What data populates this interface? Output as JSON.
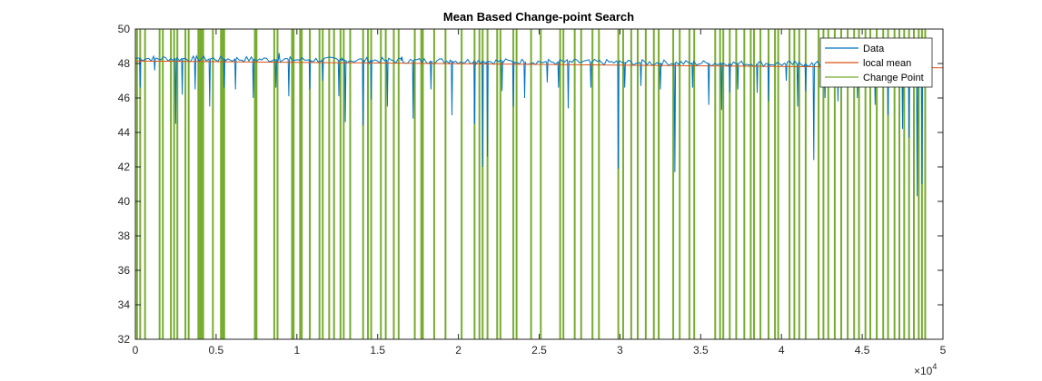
{
  "chart_data": {
    "type": "line",
    "title": "Mean Based Change-point Search",
    "xlabel": "",
    "ylabel": "",
    "xlim": [
      0,
      50000
    ],
    "ylim": [
      32,
      50
    ],
    "x_ticks": [
      0,
      5000,
      10000,
      15000,
      20000,
      25000,
      30000,
      35000,
      40000,
      45000,
      50000
    ],
    "x_tick_labels": [
      "0",
      "0.5",
      "1",
      "1.5",
      "2",
      "2.5",
      "3",
      "3.5",
      "4",
      "4.5",
      "5"
    ],
    "x_exponent_base": "×10",
    "x_exponent_power": "4",
    "y_ticks": [
      32,
      34,
      36,
      38,
      40,
      42,
      44,
      46,
      48,
      50
    ],
    "y_tick_labels": [
      "32",
      "34",
      "36",
      "38",
      "40",
      "42",
      "44",
      "46",
      "48",
      "50"
    ],
    "grid": false,
    "legend_position": "top-right",
    "series": [
      {
        "name": "Data",
        "color": "#0072BD",
        "baseline_start": 48.3,
        "baseline_end": 47.9,
        "dips": [
          [
            300,
            46.6
          ],
          [
            1200,
            47.6
          ],
          [
            2500,
            44.5
          ],
          [
            2900,
            46.2
          ],
          [
            3700,
            46.5
          ],
          [
            4600,
            45.5
          ],
          [
            5500,
            46.6
          ],
          [
            6200,
            46.5
          ],
          [
            7300,
            46.0
          ],
          [
            8700,
            46.6
          ],
          [
            9500,
            46.1
          ],
          [
            10800,
            46.5
          ],
          [
            11600,
            47.0
          ],
          [
            12600,
            46.1
          ],
          [
            13000,
            44.6
          ],
          [
            14100,
            44.4
          ],
          [
            14600,
            45.9
          ],
          [
            15600,
            45.5
          ],
          [
            17200,
            44.8
          ],
          [
            18300,
            46.5
          ],
          [
            19600,
            45.0
          ],
          [
            21000,
            44.5
          ],
          [
            21500,
            42.0
          ],
          [
            21800,
            42.6
          ],
          [
            22700,
            46.4
          ],
          [
            23400,
            45.5
          ],
          [
            24100,
            46.0
          ],
          [
            25500,
            46.9
          ],
          [
            26200,
            46.6
          ],
          [
            26800,
            45.4
          ],
          [
            28200,
            46.6
          ],
          [
            29900,
            41.9
          ],
          [
            30300,
            46.6
          ],
          [
            31300,
            46.7
          ],
          [
            32500,
            46.5
          ],
          [
            33400,
            41.7
          ],
          [
            34500,
            46.6
          ],
          [
            35500,
            45.6
          ],
          [
            36300,
            45.3
          ],
          [
            36800,
            46.3
          ],
          [
            37300,
            46.5
          ],
          [
            38500,
            46.3
          ],
          [
            39200,
            45.8
          ],
          [
            40300,
            47.0
          ],
          [
            41000,
            45.5
          ],
          [
            41500,
            46.4
          ],
          [
            42000,
            42.4
          ],
          [
            42700,
            46.0
          ],
          [
            43500,
            45.8
          ],
          [
            44700,
            46.0
          ],
          [
            45800,
            45.6
          ],
          [
            46600,
            45.0
          ],
          [
            47500,
            44.2
          ],
          [
            47900,
            43.7
          ],
          [
            48400,
            40.3
          ],
          [
            48700,
            41.0
          ]
        ],
        "peaks": [
          [
            8900,
            48.6
          ],
          [
            12800,
            48.3
          ],
          [
            16500,
            48.4
          ],
          [
            19500,
            48.2
          ]
        ]
      },
      {
        "name": "local mean",
        "color": "#D95319",
        "x": [
          0,
          50000
        ],
        "y": [
          48.15,
          47.75
        ]
      },
      {
        "name": "Change Point",
        "color": "#77AC30",
        "x_values": [
          100,
          300,
          600,
          1500,
          1700,
          2200,
          2400,
          2600,
          3100,
          3300,
          3900,
          4000,
          4100,
          4200,
          4800,
          5300,
          5400,
          5500,
          7400,
          7500,
          8600,
          8800,
          9700,
          9800,
          10200,
          10300,
          10800,
          11400,
          11600,
          12000,
          12300,
          12700,
          12900,
          13300,
          14100,
          14400,
          14600,
          15200,
          15500,
          16000,
          16300,
          17300,
          17700,
          17800,
          18500,
          19200,
          20200,
          21000,
          21300,
          21500,
          21800,
          22400,
          22600,
          23400,
          23600,
          24500,
          25100,
          26300,
          26500,
          27200,
          27600,
          28300,
          28700,
          29900,
          30200,
          30700,
          31100,
          31600,
          32100,
          32400,
          33300,
          33700,
          34300,
          34600,
          35900,
          36200,
          36400,
          36800,
          37200,
          37700,
          38100,
          38300,
          38700,
          39200,
          39600,
          39800,
          40500,
          40800,
          41100,
          41500,
          42300,
          42600,
          42900,
          43300,
          43700,
          44100,
          44500,
          44800,
          45200,
          45500,
          45900,
          46300,
          46600,
          47000,
          47300,
          47600,
          47900,
          48200,
          48500,
          48700,
          48900
        ]
      }
    ]
  }
}
